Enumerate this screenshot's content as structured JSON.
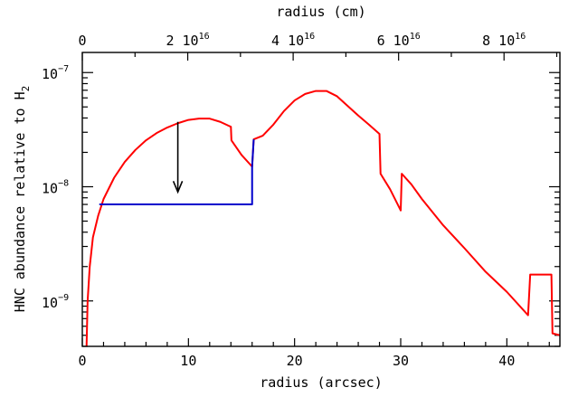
{
  "chart_data": {
    "type": "line",
    "title": "",
    "xlabel": "radius (arcsec)",
    "x2label": "radius (cm)",
    "ylabel": "HNC abundance relative to H",
    "ylabel_subscript": "2",
    "xlim": [
      0,
      45
    ],
    "x2lim_cm": [
      0,
      9.06e+16
    ],
    "ylim": [
      4e-10,
      1.5e-07
    ],
    "yscale": "log",
    "grid": false,
    "x_ticks": [
      "0",
      "10",
      "20",
      "30",
      "40"
    ],
    "x2_ticks": [
      {
        "label": "0",
        "sup": "",
        "value": 0
      },
      {
        "label": "2 10",
        "sup": "16",
        "value": 2e+16
      },
      {
        "label": "4 10",
        "sup": "16",
        "value": 4e+16
      },
      {
        "label": "6 10",
        "sup": "16",
        "value": 6e+16
      },
      {
        "label": "8 10",
        "sup": "16",
        "value": 8e+16
      }
    ],
    "y_ticks": [
      {
        "base": "10",
        "sup": "−9",
        "value": 1e-09
      },
      {
        "base": "10",
        "sup": "−8",
        "value": 1e-08
      },
      {
        "base": "10",
        "sup": "−7",
        "value": 1e-07
      }
    ],
    "series": [
      {
        "color": "#ff0000",
        "points": [
          [
            0.4,
            4e-10
          ],
          [
            0.5,
            1e-09
          ],
          [
            0.7,
            2e-09
          ],
          [
            1.0,
            3.6e-09
          ],
          [
            1.5,
            5.6e-09
          ],
          [
            2.0,
            7.8e-09
          ],
          [
            3.0,
            1.2e-08
          ],
          [
            4.0,
            1.65e-08
          ],
          [
            5.0,
            2.1e-08
          ],
          [
            6.0,
            2.55e-08
          ],
          [
            7.0,
            2.95e-08
          ],
          [
            8.0,
            3.3e-08
          ],
          [
            9.0,
            3.6e-08
          ],
          [
            10.0,
            3.85e-08
          ],
          [
            11.0,
            3.95e-08
          ],
          [
            12.0,
            3.95e-08
          ],
          [
            13.0,
            3.7e-08
          ],
          [
            14.0,
            3.35e-08
          ],
          [
            14.05,
            2.55e-08
          ],
          [
            15.0,
            1.9e-08
          ],
          [
            16.0,
            1.5e-08
          ],
          [
            16.15,
            2.6e-08
          ],
          [
            17.0,
            2.8e-08
          ],
          [
            18.0,
            3.5e-08
          ],
          [
            19.0,
            4.6e-08
          ],
          [
            20.0,
            5.7e-08
          ],
          [
            21.0,
            6.5e-08
          ],
          [
            22.0,
            6.9e-08
          ],
          [
            23.0,
            6.9e-08
          ],
          [
            24.0,
            6.2e-08
          ],
          [
            25.0,
            5.1e-08
          ],
          [
            26.0,
            4.2e-08
          ],
          [
            27.0,
            3.5e-08
          ],
          [
            28.0,
            2.9e-08
          ],
          [
            28.1,
            1.3e-08
          ],
          [
            29.0,
            9.5e-09
          ],
          [
            30.0,
            6.2e-09
          ],
          [
            30.1,
            1.3e-08
          ],
          [
            31.0,
            1.05e-08
          ],
          [
            32.0,
            7.8e-09
          ],
          [
            34.0,
            4.6e-09
          ],
          [
            36.0,
            2.9e-09
          ],
          [
            38.0,
            1.8e-09
          ],
          [
            40.0,
            1.2e-09
          ],
          [
            42.0,
            7.5e-10
          ],
          [
            42.2,
            1.7e-09
          ],
          [
            44.2,
            1.7e-09
          ],
          [
            44.3,
            5.2e-10
          ],
          [
            45.0,
            5e-10
          ]
        ]
      },
      {
        "color": "#0000cc",
        "points": [
          [
            1.6,
            7e-09
          ],
          [
            16.0,
            7e-09
          ],
          [
            16.0,
            1.5e-08
          ],
          [
            16.15,
            2.6e-08
          ]
        ]
      }
    ],
    "annotations": [
      {
        "type": "arrow",
        "color": "#000000",
        "x": 9.0,
        "y_from": 3.7e-08,
        "y_to": 9e-09
      }
    ]
  }
}
